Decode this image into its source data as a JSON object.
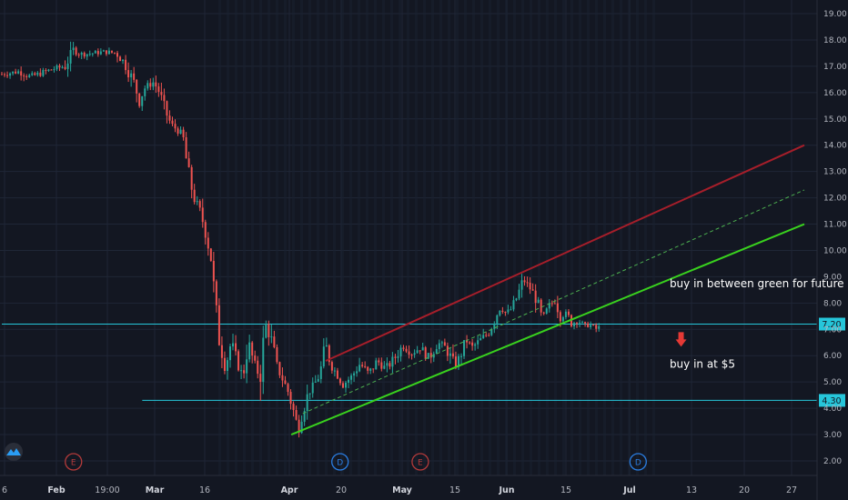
{
  "chart_data": {
    "type": "candlestick",
    "title": "",
    "ylim": [
      1.5,
      19.5
    ],
    "y_ticks": [
      "2.00",
      "3.00",
      "4.00",
      "5.00",
      "6.00",
      "7.00",
      "8.00",
      "9.00",
      "10.00",
      "11.00",
      "12.00",
      "13.00",
      "14.00",
      "15.00",
      "16.00",
      "17.00",
      "18.00",
      "19.00"
    ],
    "x_ticks": [
      {
        "label": "6",
        "bold": false
      },
      {
        "label": "Feb",
        "bold": true
      },
      {
        "label": "19:00",
        "bold": false
      },
      {
        "label": "Mar",
        "bold": true
      },
      {
        "label": "16",
        "bold": false
      },
      {
        "label": "Apr",
        "bold": true
      },
      {
        "label": "20",
        "bold": false
      },
      {
        "label": "May",
        "bold": true
      },
      {
        "label": "15",
        "bold": false
      },
      {
        "label": "Jun",
        "bold": true
      },
      {
        "label": "15",
        "bold": false
      },
      {
        "label": "Jul",
        "bold": true
      },
      {
        "label": "13",
        "bold": false
      },
      {
        "label": "20",
        "bold": false
      },
      {
        "label": "27",
        "bold": false
      }
    ],
    "price_series": [
      {
        "t": 0.0,
        "v": 16.7
      },
      {
        "t": 0.03,
        "v": 16.8
      },
      {
        "t": 0.05,
        "v": 16.6
      },
      {
        "t": 0.07,
        "v": 16.75
      },
      {
        "t": 0.09,
        "v": 16.9
      },
      {
        "t": 0.11,
        "v": 17.0
      },
      {
        "t": 0.125,
        "v": 17.6
      },
      {
        "t": 0.14,
        "v": 17.45
      },
      {
        "t": 0.16,
        "v": 17.5
      },
      {
        "t": 0.18,
        "v": 17.55
      },
      {
        "t": 0.2,
        "v": 17.5
      },
      {
        "t": 0.215,
        "v": 17.1
      },
      {
        "t": 0.23,
        "v": 16.4
      },
      {
        "t": 0.24,
        "v": 15.7
      },
      {
        "t": 0.25,
        "v": 16.2
      },
      {
        "t": 0.265,
        "v": 16.4
      },
      {
        "t": 0.275,
        "v": 16.0
      },
      {
        "t": 0.285,
        "v": 15.3
      },
      {
        "t": 0.295,
        "v": 14.8
      },
      {
        "t": 0.305,
        "v": 14.6
      },
      {
        "t": 0.315,
        "v": 14.4
      },
      {
        "t": 0.325,
        "v": 13.0
      },
      {
        "t": 0.335,
        "v": 12.0
      },
      {
        "t": 0.345,
        "v": 11.5
      },
      {
        "t": 0.355,
        "v": 10.8
      },
      {
        "t": 0.365,
        "v": 9.7
      },
      {
        "t": 0.372,
        "v": 8.0
      },
      {
        "t": 0.38,
        "v": 6.5
      },
      {
        "t": 0.39,
        "v": 5.6
      },
      {
        "t": 0.4,
        "v": 6.5
      },
      {
        "t": 0.41,
        "v": 5.8
      },
      {
        "t": 0.42,
        "v": 5.2
      },
      {
        "t": 0.43,
        "v": 6.5
      },
      {
        "t": 0.44,
        "v": 5.7
      },
      {
        "t": 0.45,
        "v": 5.2
      },
      {
        "t": 0.46,
        "v": 7.2
      },
      {
        "t": 0.47,
        "v": 6.6
      },
      {
        "t": 0.48,
        "v": 5.6
      },
      {
        "t": 0.49,
        "v": 5.1
      },
      {
        "t": 0.5,
        "v": 4.6
      },
      {
        "t": 0.51,
        "v": 3.8
      },
      {
        "t": 0.517,
        "v": 3.2
      },
      {
        "t": 0.525,
        "v": 3.9
      },
      {
        "t": 0.535,
        "v": 4.6
      },
      {
        "t": 0.545,
        "v": 4.9
      },
      {
        "t": 0.555,
        "v": 5.3
      },
      {
        "t": 0.565,
        "v": 6.4
      },
      {
        "t": 0.575,
        "v": 5.6
      },
      {
        "t": 0.585,
        "v": 5.3
      },
      {
        "t": 0.595,
        "v": 4.9
      },
      {
        "t": 0.61,
        "v": 5.2
      },
      {
        "t": 0.625,
        "v": 5.7
      },
      {
        "t": 0.64,
        "v": 5.3
      },
      {
        "t": 0.655,
        "v": 5.8
      },
      {
        "t": 0.67,
        "v": 5.5
      },
      {
        "t": 0.685,
        "v": 5.9
      },
      {
        "t": 0.7,
        "v": 6.4
      },
      {
        "t": 0.715,
        "v": 6.1
      },
      {
        "t": 0.73,
        "v": 6.3
      },
      {
        "t": 0.745,
        "v": 5.9
      },
      {
        "t": 0.76,
        "v": 6.5
      },
      {
        "t": 0.775,
        "v": 6.3
      },
      {
        "t": 0.79,
        "v": 5.6
      },
      {
        "t": 0.8,
        "v": 6.0
      },
      {
        "t": 0.81,
        "v": 6.6
      },
      {
        "t": 0.82,
        "v": 6.3
      },
      {
        "t": 0.835,
        "v": 6.6
      },
      {
        "t": 0.85,
        "v": 6.9
      },
      {
        "t": 0.86,
        "v": 7.4
      },
      {
        "t": 0.87,
        "v": 7.9
      },
      {
        "t": 0.88,
        "v": 7.6
      },
      {
        "t": 0.89,
        "v": 7.8
      },
      {
        "t": 0.9,
        "v": 8.3
      },
      {
        "t": 0.91,
        "v": 8.9
      },
      {
        "t": 0.92,
        "v": 8.6
      },
      {
        "t": 0.93,
        "v": 8.3
      },
      {
        "t": 0.94,
        "v": 7.6
      },
      {
        "t": 0.945,
        "v": 7.4
      },
      {
        "t": 0.955,
        "v": 7.9
      },
      {
        "t": 0.965,
        "v": 8.1
      },
      {
        "t": 0.975,
        "v": 7.5
      },
      {
        "t": 0.985,
        "v": 7.6
      },
      {
        "t": 0.995,
        "v": 7.2
      },
      {
        "t": 1.005,
        "v": 7.4
      },
      {
        "t": 1.015,
        "v": 7.1
      },
      {
        "t": 1.025,
        "v": 7.2
      },
      {
        "t": 1.035,
        "v": 7.0
      },
      {
        "t": 1.045,
        "v": 7.1
      }
    ],
    "horizontal_lines": [
      {
        "name": "level-720",
        "value": 7.2,
        "label": "7.20",
        "color": "#26c6da",
        "from": 0.0
      },
      {
        "name": "level-430",
        "value": 4.3,
        "label": "4.30",
        "color": "#26c6da",
        "from": 0.245
      }
    ],
    "trend_lines": [
      {
        "name": "red-channel-top",
        "color": "#a61e2a",
        "width": 2,
        "dash": false,
        "from": [
          0.565,
          5.8
        ],
        "to": [
          1.4,
          14.0
        ]
      },
      {
        "name": "green-dashed-mid",
        "color": "#4caf50",
        "width": 1,
        "dash": true,
        "from": [
          0.525,
          3.8
        ],
        "to": [
          1.4,
          12.3
        ]
      },
      {
        "name": "green-channel-bottom",
        "color": "#39d11e",
        "width": 2,
        "dash": false,
        "from": [
          0.505,
          3.0
        ],
        "to": [
          1.4,
          11.0
        ]
      }
    ],
    "annotations": [
      {
        "name": "annotation-future",
        "text": "buy in between green for future",
        "t": 1.165,
        "v": 8.6
      },
      {
        "name": "annotation-5",
        "text": "buy in at $5",
        "t": 1.165,
        "v": 5.55
      }
    ],
    "markers": [
      {
        "name": "earnings-marker-1",
        "letter": "E",
        "t": 0.125,
        "color": "#b33a3a"
      },
      {
        "name": "dividend-marker-1",
        "letter": "D",
        "t": 0.59,
        "color": "#2a7de1"
      },
      {
        "name": "earnings-marker-2",
        "letter": "E",
        "t": 0.73,
        "color": "#b33a3a"
      },
      {
        "name": "dividend-marker-2",
        "letter": "D",
        "t": 1.11,
        "color": "#2a7de1"
      }
    ],
    "arrow": {
      "name": "red-down-arrow",
      "t": 1.185,
      "v": 6.55,
      "color": "#e53935"
    },
    "colors": {
      "background": "#131722",
      "grid": "#1f2636",
      "up": "#26a69a",
      "down": "#ef5350",
      "axis_text": "#b2b5be"
    }
  }
}
